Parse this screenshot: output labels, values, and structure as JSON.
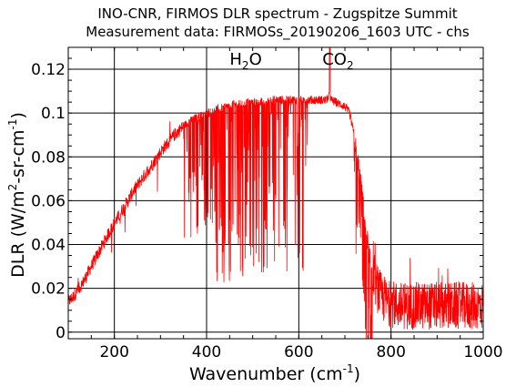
{
  "chart_data": {
    "type": "line",
    "title": "INO-CNR, FIRMOS DLR spectrum - Zugspitze Summit",
    "subtitle": "Measurement data: FIRMOSs_20190206_1603 UTC - chs",
    "xlabel": {
      "main": "Wavenumber (cm",
      "sup": "-1",
      "tail": ")"
    },
    "ylabel": {
      "p1": "DLR (W/m",
      "sup1": "2",
      "p2": "-sr-cm",
      "sup2": "-1",
      "p3": ")"
    },
    "xlim": [
      100,
      1000
    ],
    "ylim": [
      -0.003,
      0.13
    ],
    "x_ticks": [
      200,
      400,
      600,
      800,
      1000
    ],
    "x_tick_labels": [
      "200",
      "400",
      "600",
      "800",
      "1000"
    ],
    "y_ticks": [
      0,
      0.02,
      0.04,
      0.06,
      0.08,
      0.1,
      0.12
    ],
    "y_tick_labels": [
      "0",
      "0.02",
      "0.04",
      "0.06",
      "0.08",
      "0.1",
      "0.12"
    ],
    "grid": true,
    "line_color": "#ff0000",
    "annotations": [
      {
        "base": "H",
        "sub": "2",
        "tail": "O",
        "x": 485,
        "y": 0.122
      },
      {
        "base": "CO",
        "sub": "2",
        "tail": "",
        "x": 685,
        "y": 0.122
      }
    ],
    "series": [
      {
        "x": [
          100,
          110,
          120,
          130,
          140,
          150,
          160,
          170,
          180,
          190,
          200,
          210,
          220,
          230,
          240,
          250,
          260,
          270,
          280,
          290,
          300,
          310,
          320,
          330,
          340,
          350,
          360,
          370,
          380,
          390,
          400,
          410,
          420,
          430,
          440,
          450,
          460,
          470,
          480,
          490,
          500,
          510,
          520,
          530,
          540,
          550,
          560,
          570,
          580,
          590,
          600,
          610,
          620,
          630,
          640,
          650,
          660,
          667,
          670,
          680,
          690,
          700,
          710,
          720,
          730,
          740,
          750,
          760,
          770,
          780,
          790,
          800,
          820,
          840,
          860,
          880,
          900,
          920,
          940,
          960,
          980,
          1000
        ],
        "y": [
          0.014,
          0.016,
          0.019,
          0.022,
          0.026,
          0.03,
          0.034,
          0.038,
          0.042,
          0.046,
          0.05,
          0.053,
          0.057,
          0.06,
          0.064,
          0.067,
          0.07,
          0.073,
          0.076,
          0.079,
          0.082,
          0.085,
          0.087,
          0.09,
          0.092,
          0.094,
          0.096,
          0.097,
          0.098,
          0.099,
          0.1,
          0.101,
          0.102,
          0.102,
          0.103,
          0.103,
          0.104,
          0.104,
          0.104,
          0.105,
          0.105,
          0.105,
          0.105,
          0.105,
          0.106,
          0.106,
          0.106,
          0.106,
          0.106,
          0.106,
          0.106,
          0.106,
          0.106,
          0.106,
          0.106,
          0.106,
          0.106,
          0.108,
          0.106,
          0.105,
          0.104,
          0.103,
          0.1,
          0.09,
          0.075,
          0.058,
          0.04,
          0.028,
          0.02,
          0.016,
          0.014,
          0.013,
          0.012,
          0.012,
          0.012,
          0.012,
          0.012,
          0.012,
          0.012,
          0.012,
          0.012,
          0.012
        ]
      }
    ]
  }
}
